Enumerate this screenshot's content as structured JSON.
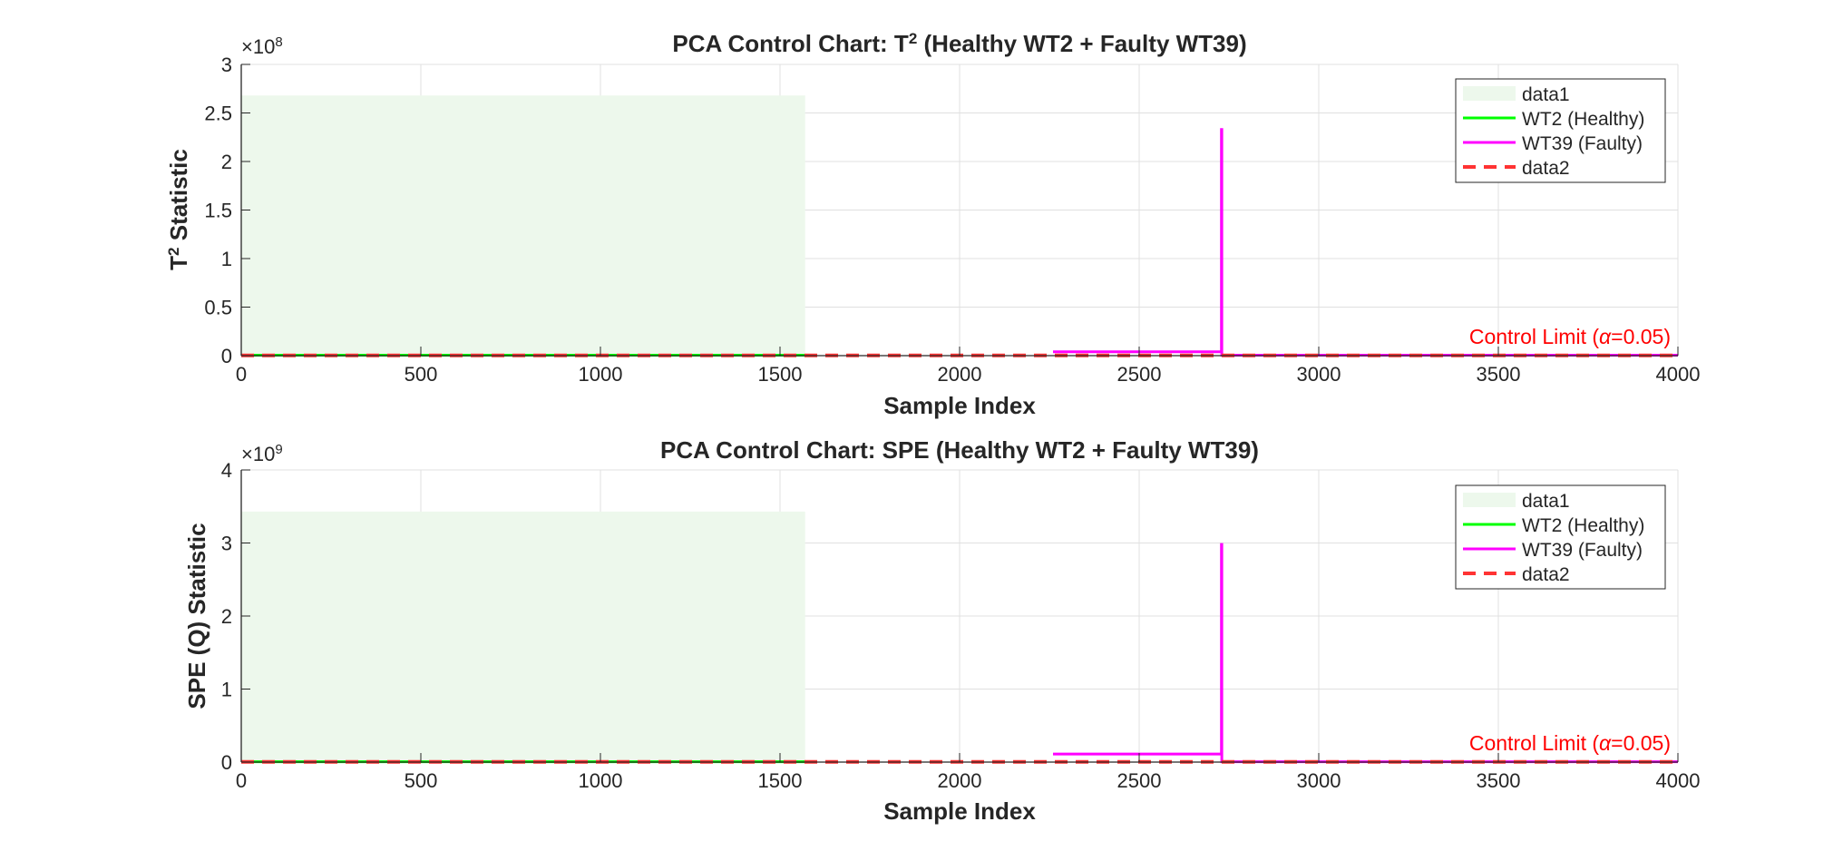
{
  "colors": {
    "healthy_region": "#edf8ec",
    "healthy": "#00ff00",
    "faulty": "#ff00ff",
    "limit": "#ff3333",
    "limit_text": "#ff0000"
  },
  "chart_data": [
    {
      "type": "line",
      "title_prefix": "PCA  Control  Chart:  T",
      "title_sup": "2",
      "title_suffix": "  (Healthy  WT2  +  Faulty  WT39)",
      "xlabel": "Sample Index",
      "ylabel_prefix": "T",
      "ylabel_sup": "2",
      "ylabel_suffix": "  Statistic",
      "xlim": [
        0,
        4000
      ],
      "ylim": [
        0,
        3
      ],
      "xticks": [
        "0",
        "500",
        "1000",
        "1500",
        "2000",
        "2500",
        "3000",
        "3500",
        "4000"
      ],
      "yticks": [
        "0",
        "0.5",
        "1",
        "1.5",
        "2",
        "2.5",
        "3"
      ],
      "exponent_base": "×10",
      "exponent_power": "8",
      "grid": true,
      "legend_placement": "top-right",
      "legend": [
        "data1",
        "WT2 (Healthy)",
        "WT39 (Faulty)",
        "data2"
      ],
      "control_limit_label_prefix": "Control  Limit  (",
      "control_limit_label_symbol": "α",
      "control_limit_label_suffix": "=0.05)",
      "healthy_region": {
        "x": [
          0,
          1570
        ],
        "y_top": 2.68
      },
      "series": [
        {
          "name": "WT2 (Healthy)",
          "x": [
            0,
            1570
          ],
          "y": [
            0.005,
            0.005
          ]
        },
        {
          "name": "WT39 (Faulty)",
          "x": [
            2260,
            2729,
            2729,
            2730,
            2730,
            4000
          ],
          "y": [
            0.04,
            0.04,
            2.33,
            2.33,
            0.005,
            0.005
          ]
        },
        {
          "name": "data2",
          "x": [
            0,
            4000
          ],
          "y": [
            0.003,
            0.003
          ]
        }
      ]
    },
    {
      "type": "line",
      "title_prefix": "PCA  Control  Chart:  SPE  (Healthy  WT2  +  Faulty  WT39)",
      "title_sup": "",
      "title_suffix": "",
      "xlabel": "Sample Index",
      "ylabel_prefix": "SPE  (Q)  Statistic",
      "ylabel_sup": "",
      "ylabel_suffix": "",
      "xlim": [
        0,
        4000
      ],
      "ylim": [
        0,
        4
      ],
      "xticks": [
        "0",
        "500",
        "1000",
        "1500",
        "2000",
        "2500",
        "3000",
        "3500",
        "4000"
      ],
      "yticks": [
        "0",
        "1",
        "2",
        "3",
        "4"
      ],
      "exponent_base": "×10",
      "exponent_power": "9",
      "grid": true,
      "legend_placement": "top-right",
      "legend": [
        "data1",
        "WT2 (Healthy)",
        "WT39 (Faulty)",
        "data2"
      ],
      "control_limit_label_prefix": "Control  Limit  (",
      "control_limit_label_symbol": "α",
      "control_limit_label_suffix": "=0.05)",
      "healthy_region": {
        "x": [
          0,
          1570
        ],
        "y_top": 3.43
      },
      "series": [
        {
          "name": "WT2 (Healthy)",
          "x": [
            0,
            1570
          ],
          "y": [
            0.005,
            0.005
          ]
        },
        {
          "name": "WT39 (Faulty)",
          "x": [
            2260,
            2729,
            2729,
            2730,
            2730,
            4000
          ],
          "y": [
            0.11,
            0.11,
            2.98,
            2.98,
            0.005,
            0.005
          ]
        },
        {
          "name": "data2",
          "x": [
            0,
            4000
          ],
          "y": [
            0.004,
            0.004
          ]
        }
      ]
    }
  ]
}
